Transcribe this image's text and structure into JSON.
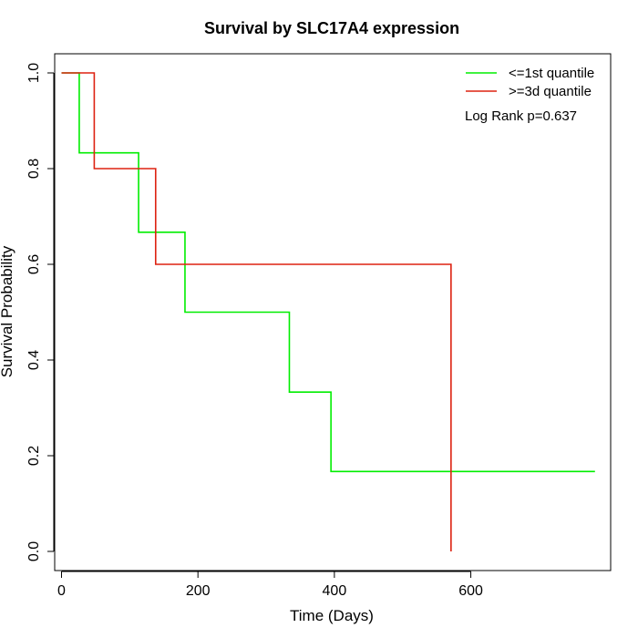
{
  "chart_data": {
    "type": "line",
    "title": "Survival by SLC17A4 expression",
    "xlabel": "Time (Days)",
    "ylabel": "Survival Probability",
    "xlim": [
      -10,
      805
    ],
    "ylim": [
      -0.04,
      1.04
    ],
    "x_ticks": [
      0,
      200,
      400,
      600
    ],
    "x_tick_labels": [
      "0",
      "200",
      "400",
      "600"
    ],
    "y_ticks": [
      0.0,
      0.2,
      0.4,
      0.6,
      0.8,
      1.0
    ],
    "y_tick_labels": [
      "0.0",
      "0.2",
      "0.4",
      "0.6",
      "0.8",
      "1.0"
    ],
    "grid": false,
    "legend_position": "top-right",
    "series": [
      {
        "name": "<=1st quantile",
        "color": "#00ee00",
        "step": "post",
        "x": [
          0,
          26,
          113,
          181,
          334,
          395,
          782
        ],
        "y": [
          1.0,
          0.833,
          0.667,
          0.5,
          0.333,
          0.167,
          0.167
        ]
      },
      {
        "name": ">=3d quantile",
        "color": "#dd2211",
        "step": "post",
        "x": [
          0,
          48,
          138,
          571,
          571
        ],
        "y": [
          1.0,
          0.8,
          0.6,
          0.6,
          0.0
        ]
      }
    ],
    "annotations": [
      "Log Rank p=0.637"
    ]
  }
}
